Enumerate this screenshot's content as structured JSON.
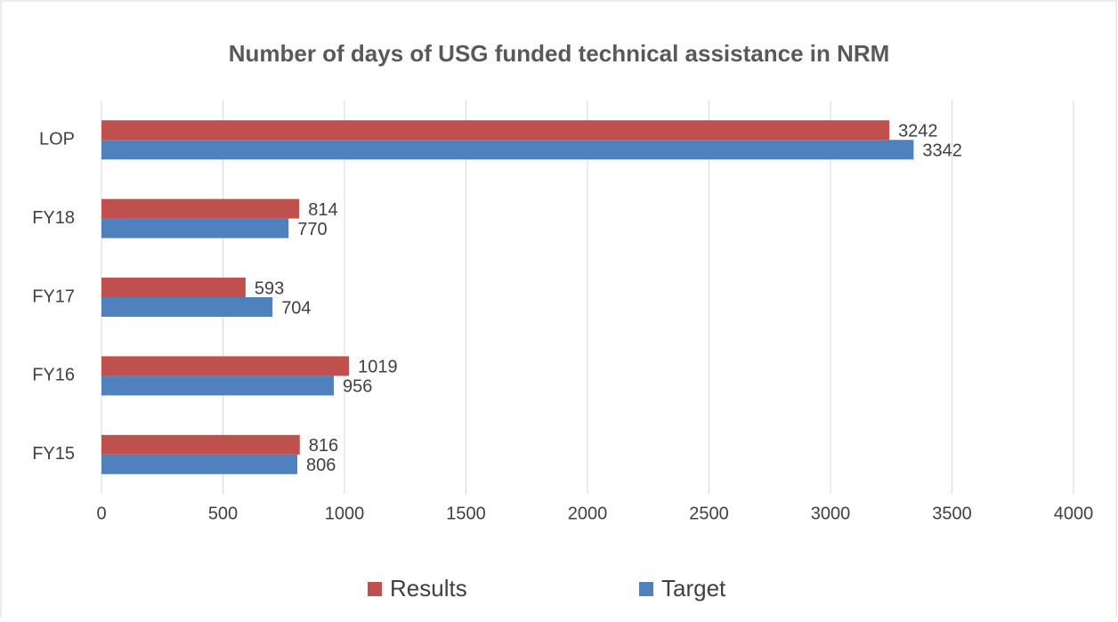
{
  "chart_data": {
    "type": "bar",
    "orientation": "horizontal",
    "title": "Number of days of USG funded technical assistance in NRM",
    "categories": [
      "FY15",
      "FY16",
      "FY17",
      "FY18",
      "LOP"
    ],
    "series": [
      {
        "name": "Results",
        "color": "#c0504d",
        "values": [
          816,
          1019,
          593,
          814,
          3242
        ]
      },
      {
        "name": "Target",
        "color": "#4f81bd",
        "values": [
          806,
          956,
          704,
          770,
          3342
        ]
      }
    ],
    "xlim": [
      0,
      4000
    ],
    "xticks": [
      0,
      500,
      1000,
      1500,
      2000,
      2500,
      3000,
      3500,
      4000
    ],
    "grid": true,
    "legend": "bottom"
  }
}
